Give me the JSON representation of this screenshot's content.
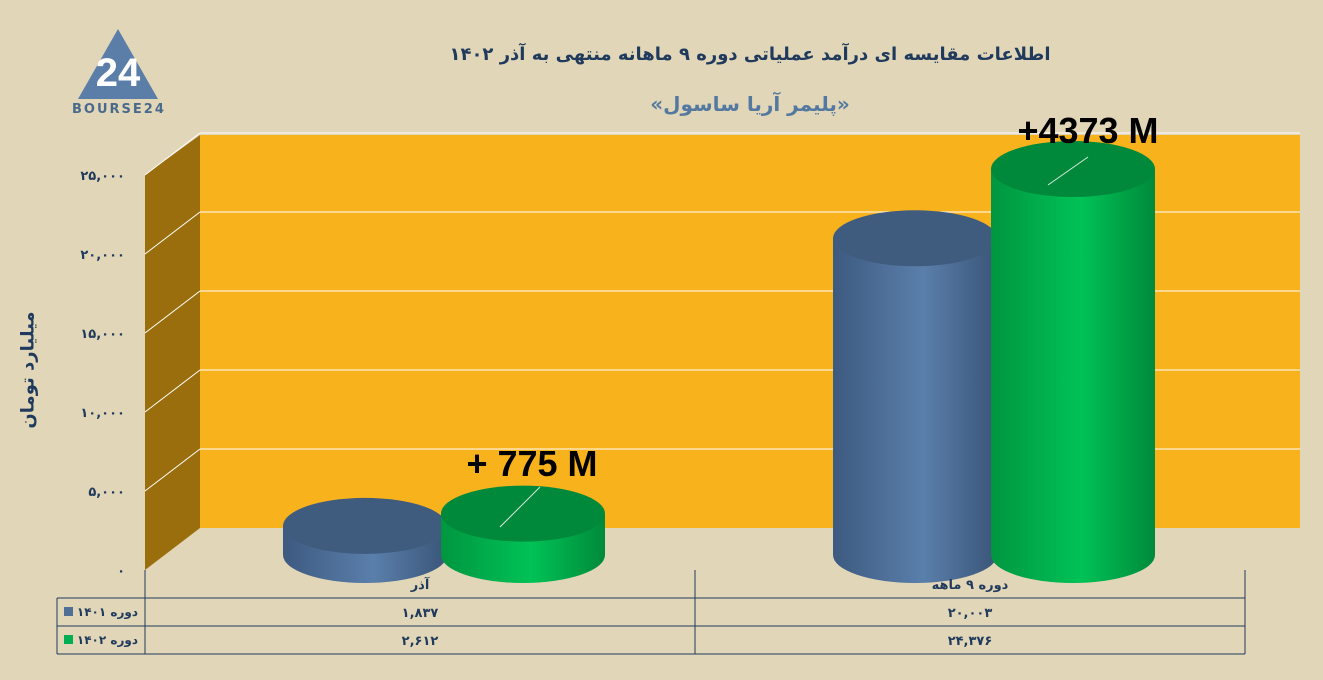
{
  "logo_text": "BOURSE24",
  "logo_mark": "24",
  "chart_data": {
    "type": "bar",
    "title": "اطلاعات مقایسه ای درآمد عملیاتی دوره ۹ ماهانه منتهی به آذر ۱۴۰۲",
    "subtitle": "«پلیمر آریا ساسول»",
    "ylabel": "میلیارد تومان",
    "ylim": [
      0,
      25000
    ],
    "yticks": [
      0,
      5000,
      10000,
      15000,
      20000,
      25000
    ],
    "ytick_labels": [
      "۰",
      "۵,۰۰۰",
      "۱۰,۰۰۰",
      "۱۵,۰۰۰",
      "۲۰,۰۰۰",
      "۲۵,۰۰۰"
    ],
    "categories": [
      "آذر",
      "دوره ۹ ماهه"
    ],
    "series": [
      {
        "name": "دوره ۱۴۰۱",
        "color": "#4f6f96",
        "values": [
          1837,
          20003
        ],
        "labels": [
          "۱,۸۳۷",
          "۲۰,۰۰۳"
        ]
      },
      {
        "name": "دوره ۱۴۰۲",
        "color": "#00b050",
        "values": [
          2612,
          24376
        ],
        "labels": [
          "۲,۶۱۲",
          "۲۴,۳۷۶"
        ]
      }
    ],
    "annotations": [
      "+ 775 M",
      "+4373 M"
    ],
    "grid": true,
    "plot_background": "#f8b21c",
    "data_table": true
  }
}
